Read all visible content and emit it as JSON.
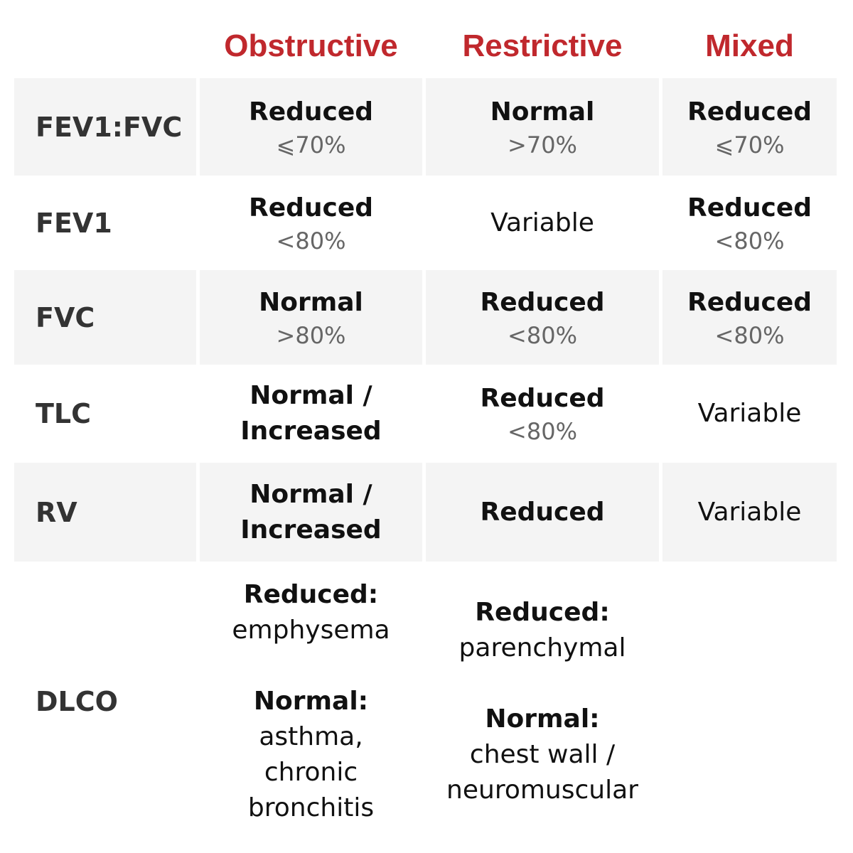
{
  "header": {
    "columns": [
      "Obstructive",
      "Restrictive",
      "Mixed"
    ]
  },
  "rows": [
    {
      "label": "FEV1:FVC",
      "shaded": true,
      "cells": [
        [
          {
            "bold": [
              "Reduced"
            ],
            "sub": [
              "⩽70%"
            ]
          }
        ],
        [
          {
            "bold": [
              "Normal"
            ],
            "sub": [
              ">70%"
            ]
          }
        ],
        [
          {
            "bold": [
              "Reduced"
            ],
            "sub": [
              "⩽70%"
            ]
          }
        ]
      ]
    },
    {
      "label": "FEV1",
      "shaded": false,
      "cells": [
        [
          {
            "bold": [
              "Reduced"
            ],
            "sub": [
              "<80%"
            ]
          }
        ],
        [
          {
            "plain": [
              "Variable"
            ]
          }
        ],
        [
          {
            "bold": [
              "Reduced"
            ],
            "sub": [
              "<80%"
            ]
          }
        ]
      ]
    },
    {
      "label": "FVC",
      "shaded": true,
      "cells": [
        [
          {
            "bold": [
              "Normal"
            ],
            "sub": [
              ">80%"
            ]
          }
        ],
        [
          {
            "bold": [
              "Reduced"
            ],
            "sub": [
              "<80%"
            ]
          }
        ],
        [
          {
            "bold": [
              "Reduced"
            ],
            "sub": [
              "<80%"
            ]
          }
        ]
      ]
    },
    {
      "label": "TLC",
      "shaded": false,
      "cells": [
        [
          {
            "bold": [
              "Normal /",
              "Increased"
            ]
          }
        ],
        [
          {
            "bold": [
              "Reduced"
            ],
            "sub": [
              "<80%"
            ]
          }
        ],
        [
          {
            "plain": [
              "Variable"
            ]
          }
        ]
      ]
    },
    {
      "label": "RV",
      "shaded": true,
      "cells": [
        [
          {
            "bold": [
              "Normal /",
              "Increased"
            ]
          }
        ],
        [
          {
            "bold": [
              "Reduced"
            ]
          }
        ],
        [
          {
            "plain": [
              "Variable"
            ]
          }
        ]
      ]
    },
    {
      "label": "DLCO",
      "shaded": false,
      "cells": [
        [
          {
            "bold": [
              "Reduced:"
            ],
            "plain": [
              "emphysema"
            ]
          },
          {
            "bold": [
              "Normal:"
            ],
            "plain": [
              "asthma,",
              "chronic",
              "bronchitis"
            ]
          }
        ],
        [
          {
            "bold": [
              "Reduced:"
            ],
            "plain": [
              "parenchymal"
            ]
          },
          {
            "bold": [
              "Normal:"
            ],
            "plain": [
              "chest wall /",
              "neuromuscular"
            ]
          }
        ]
      ]
    }
  ]
}
